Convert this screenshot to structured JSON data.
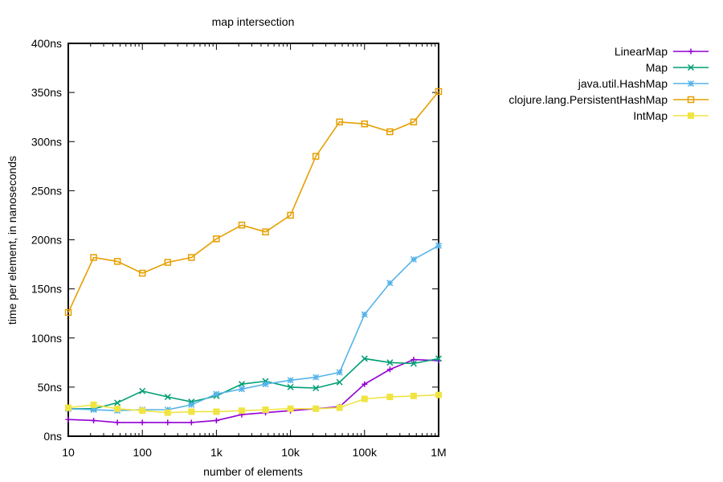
{
  "chart_data": {
    "type": "line",
    "title": "map intersection",
    "xlabel": "number of elements",
    "ylabel": "time per element, in nanoseconds",
    "x_scale": "log",
    "xlim": [
      10,
      1000000
    ],
    "ylim": [
      0,
      400
    ],
    "x_ticks": [
      {
        "value": 10,
        "label": "10"
      },
      {
        "value": 100,
        "label": "100"
      },
      {
        "value": 1000,
        "label": "1k"
      },
      {
        "value": 10000,
        "label": "10k"
      },
      {
        "value": 100000,
        "label": "100k"
      },
      {
        "value": 1000000,
        "label": "1M"
      }
    ],
    "y_ticks": [
      {
        "value": 0,
        "label": "0ns"
      },
      {
        "value": 50,
        "label": "50ns"
      },
      {
        "value": 100,
        "label": "100ns"
      },
      {
        "value": 150,
        "label": "150ns"
      },
      {
        "value": 200,
        "label": "200ns"
      },
      {
        "value": 250,
        "label": "250ns"
      },
      {
        "value": 300,
        "label": "300ns"
      },
      {
        "value": 350,
        "label": "350ns"
      },
      {
        "value": 400,
        "label": "400ns"
      }
    ],
    "legend_position": "top-right, outside plot",
    "x": [
      10,
      22,
      46,
      100,
      220,
      460,
      1000,
      2200,
      4600,
      10000,
      22000,
      46000,
      100000,
      220000,
      460000,
      1000000
    ],
    "series": [
      {
        "name": "LinearMap",
        "color": "#9400d3",
        "marker": "plus",
        "values": [
          17,
          16,
          14,
          14,
          14,
          14,
          16,
          22,
          24,
          26,
          28,
          30,
          53,
          68,
          78,
          77
        ]
      },
      {
        "name": "Map",
        "color": "#009e73",
        "marker": "cross",
        "values": [
          28,
          28,
          34,
          46,
          40,
          35,
          41,
          53,
          56,
          50,
          49,
          55,
          79,
          75,
          74,
          79
        ]
      },
      {
        "name": "java.util.HashMap",
        "color": "#56b4e9",
        "marker": "star",
        "values": [
          28,
          27,
          26,
          27,
          27,
          32,
          43,
          48,
          53,
          57,
          60,
          65,
          124,
          156,
          180,
          194
        ]
      },
      {
        "name": "clojure.lang.PersistentHashMap",
        "color": "#e69f00",
        "marker": "square-open",
        "values": [
          126,
          182,
          178,
          166,
          177,
          182,
          201,
          215,
          208,
          225,
          285,
          320,
          318,
          310,
          320,
          351
        ]
      },
      {
        "name": "IntMap",
        "color": "#f0e442",
        "marker": "square-filled",
        "values": [
          29,
          32,
          28,
          26,
          24,
          25,
          25,
          26,
          27,
          28,
          28,
          29,
          38,
          40,
          41,
          42
        ]
      }
    ]
  }
}
